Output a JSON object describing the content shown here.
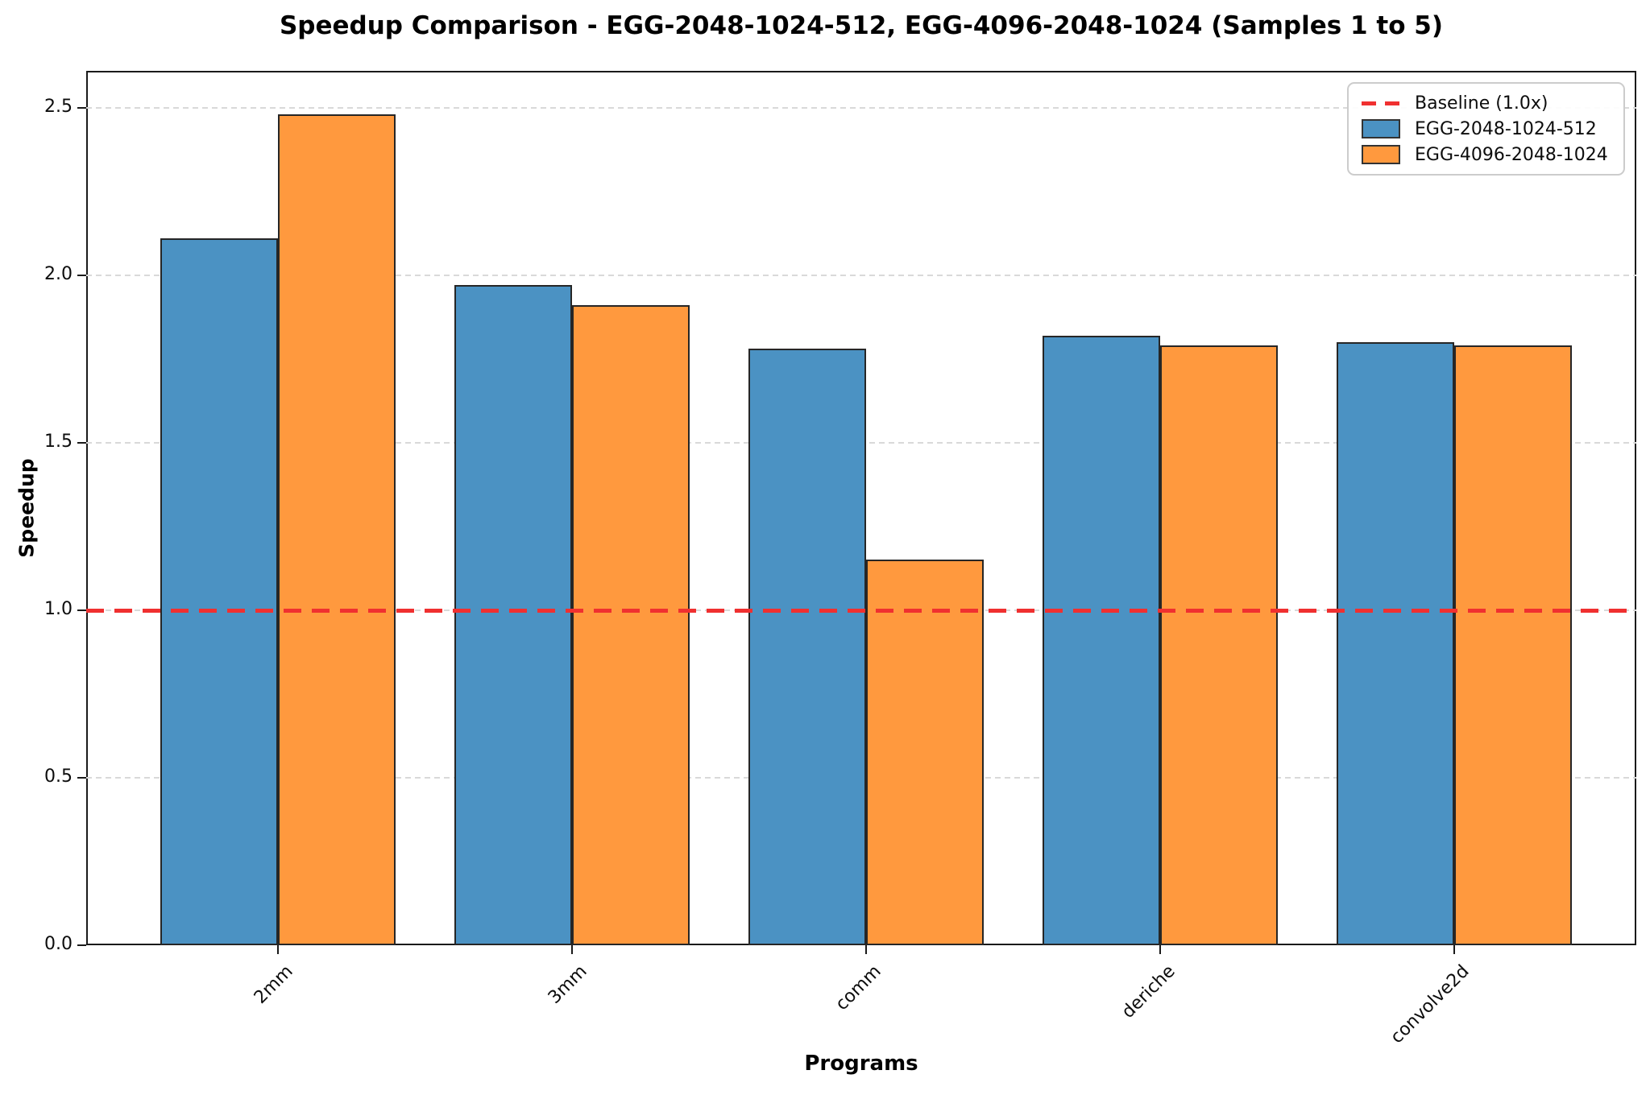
{
  "chart_data": {
    "type": "bar",
    "title": "Speedup Comparison - EGG-2048-1024-512, EGG-4096-2048-1024 (Samples 1 to 5)",
    "xlabel": "Programs",
    "ylabel": "Speedup",
    "categories": [
      "2mm",
      "3mm",
      "comm",
      "deriche",
      "convolve2d"
    ],
    "series": [
      {
        "name": "EGG-2048-1024-512",
        "color": "#4B92C3",
        "values": [
          2.11,
          1.97,
          1.78,
          1.82,
          1.8
        ]
      },
      {
        "name": "EGG-4096-2048-1024",
        "color": "#FF993E",
        "values": [
          2.48,
          1.91,
          1.15,
          1.79,
          1.79
        ]
      }
    ],
    "baseline": {
      "label": "Baseline (1.0x)",
      "value": 1.0,
      "color": "#F03030"
    },
    "bar_edge_color": "#262626",
    "ylim": [
      0,
      2.61
    ],
    "yticks": [
      0.0,
      0.5,
      1.0,
      1.5,
      2.0,
      2.5
    ],
    "yticklabels": [
      "0.0",
      "0.5",
      "1.0",
      "1.5",
      "2.0",
      "2.5"
    ],
    "grid": "horizontal-dashed",
    "legend_position": "upper right",
    "legend_entries": [
      "Baseline (1.0x)",
      "EGG-2048-1024-512",
      "EGG-4096-2048-1024"
    ]
  }
}
